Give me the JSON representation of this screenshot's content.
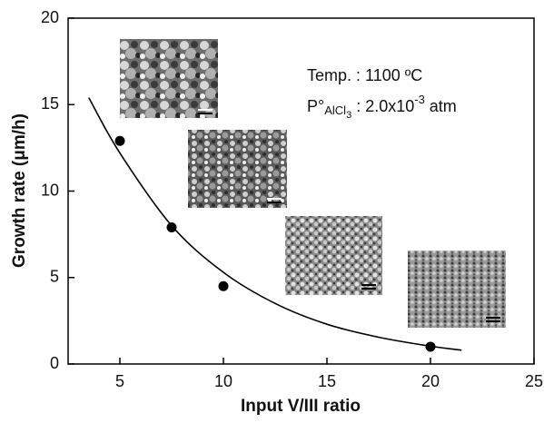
{
  "chart_data": {
    "type": "scatter",
    "xlabel": "Input V/III ratio",
    "ylabel": "Growth rate (μm/h)",
    "xlim": [
      2.5,
      25
    ],
    "ylim": [
      0,
      20
    ],
    "xticks": [
      5,
      10,
      15,
      20,
      25
    ],
    "yticks": [
      0,
      5,
      10,
      15,
      20
    ],
    "series": [
      {
        "type": "scatter",
        "color": "#000000",
        "x": [
          5,
          7.5,
          10,
          20
        ],
        "values": [
          12.9,
          7.9,
          4.5,
          1.0
        ]
      },
      {
        "type": "line",
        "color": "#000000",
        "x": [
          3.5,
          5,
          7.5,
          10,
          12.5,
          15,
          17.5,
          20,
          21.5
        ],
        "values": [
          15.4,
          12.2,
          8.0,
          5.3,
          3.5,
          2.3,
          1.55,
          1.03,
          0.8
        ]
      }
    ],
    "annotations": [
      "Temp. : 1100 ºC",
      [
        "P°",
        "AlCl",
        "3",
        " : 2.0x10",
        "-3",
        " atm"
      ]
    ]
  }
}
